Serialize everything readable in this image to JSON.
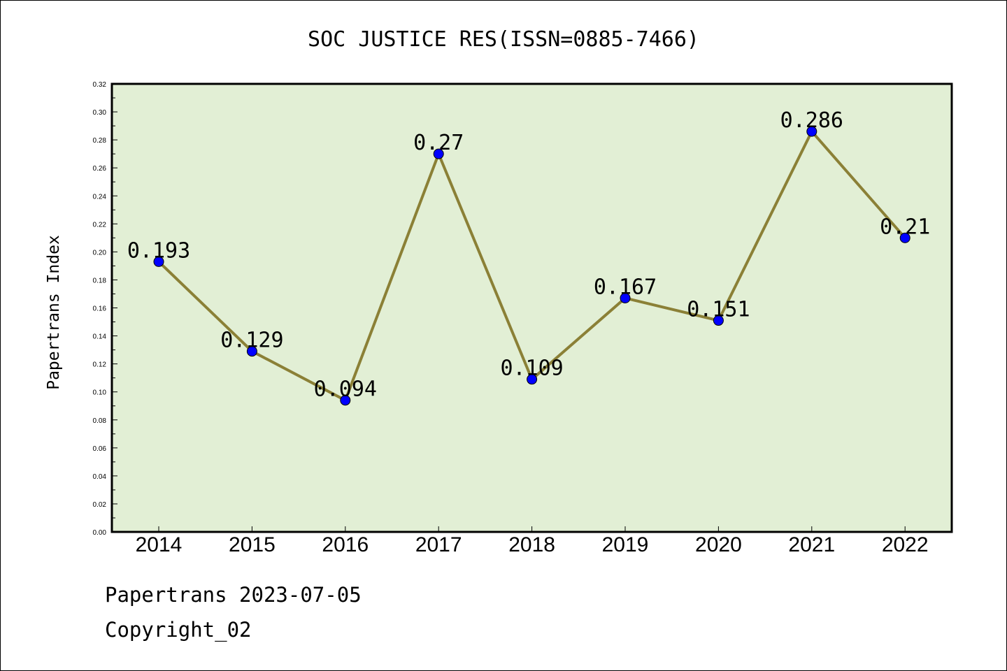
{
  "chart_data": {
    "type": "line",
    "title": "SOC JUSTICE RES(ISSN=0885-7466)",
    "xlabel": "",
    "ylabel": "Papertrans Index",
    "categories": [
      "2014",
      "2015",
      "2016",
      "2017",
      "2018",
      "2019",
      "2020",
      "2021",
      "2022"
    ],
    "values": [
      0.193,
      0.129,
      0.094,
      0.27,
      0.109,
      0.167,
      0.151,
      0.286,
      0.21
    ],
    "data_labels": [
      "0.193",
      "0.129",
      "0.094",
      "0.27",
      "0.109",
      "0.167",
      "0.151",
      "0.286",
      "0.21"
    ],
    "ylim": [
      0,
      0.32
    ],
    "yticks": [
      "0.00",
      "0.02",
      "0.04",
      "0.06",
      "0.08",
      "0.10",
      "0.12",
      "0.14",
      "0.16",
      "0.18",
      "0.20",
      "0.22",
      "0.24",
      "0.26",
      "0.28",
      "0.30",
      "0.32"
    ],
    "grid": false,
    "legend": "none",
    "colors": {
      "plot_background": "#e2efd5",
      "line": "#8b8036",
      "marker": "#0000ff"
    }
  },
  "footer": {
    "line1": "Papertrans 2023-07-05",
    "line2": "Copyright_02"
  }
}
